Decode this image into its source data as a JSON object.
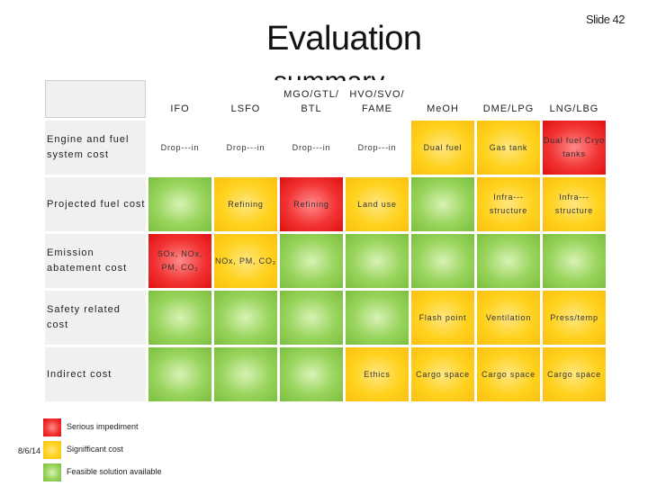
{
  "slide": {
    "number": "Slide 42",
    "title": "Evaluation",
    "subtitle_fragment": "summary",
    "date": "8/6/14"
  },
  "colors": {
    "red": "#f23434",
    "amber": "#ffd21e",
    "green": "#98d45c"
  },
  "columns": [
    "",
    "IFO",
    "LSFO",
    "MGO/GTL/ BTL",
    "HVO/SVO/ FAME",
    "MeOH",
    "DME/LPG",
    "LNG/LBG"
  ],
  "rows": [
    {
      "label": "Engine and fuel system cost",
      "cells": [
        {
          "color": "white",
          "text": "Drop-‐‐in"
        },
        {
          "color": "white",
          "text": "Drop-‐‐in"
        },
        {
          "color": "white",
          "text": "Drop-‐‐in"
        },
        {
          "color": "white",
          "text": "Drop-‐‐in"
        },
        {
          "color": "amber",
          "text": "Dual fuel"
        },
        {
          "color": "amber",
          "text": "Gas tank"
        },
        {
          "color": "red",
          "text": "Dual fuel Cryo tanks"
        }
      ]
    },
    {
      "label": "Projected fuel cost",
      "cells": [
        {
          "color": "green",
          "text": ""
        },
        {
          "color": "amber",
          "text": "Refining"
        },
        {
          "color": "red",
          "text": "Refining"
        },
        {
          "color": "amber",
          "text": "Land use"
        },
        {
          "color": "green",
          "text": ""
        },
        {
          "color": "amber",
          "text": "Infra‐‐‐ structure"
        },
        {
          "color": "amber",
          "text": "Infra‐‐‐ structure"
        }
      ]
    },
    {
      "label": "Emission abatement cost",
      "cells": [
        {
          "color": "red",
          "text": "SOx, NOx, PM, CO₂"
        },
        {
          "color": "amber",
          "text": "NOx, PM, CO₂"
        },
        {
          "color": "green",
          "text": ""
        },
        {
          "color": "green",
          "text": ""
        },
        {
          "color": "green",
          "text": ""
        },
        {
          "color": "green",
          "text": ""
        },
        {
          "color": "green",
          "text": ""
        }
      ]
    },
    {
      "label": "Safety related cost",
      "cells": [
        {
          "color": "green",
          "text": ""
        },
        {
          "color": "green",
          "text": ""
        },
        {
          "color": "green",
          "text": ""
        },
        {
          "color": "green",
          "text": ""
        },
        {
          "color": "amber",
          "text": "Flash point"
        },
        {
          "color": "amber",
          "text": "Ventilation"
        },
        {
          "color": "amber",
          "text": "Press/temp"
        }
      ]
    },
    {
      "label": "Indirect cost",
      "cells": [
        {
          "color": "green",
          "text": ""
        },
        {
          "color": "green",
          "text": ""
        },
        {
          "color": "green",
          "text": ""
        },
        {
          "color": "amber",
          "text": "Ethics"
        },
        {
          "color": "amber",
          "text": "Cargo space"
        },
        {
          "color": "amber",
          "text": "Cargo space"
        },
        {
          "color": "amber",
          "text": "Cargo space"
        }
      ]
    }
  ],
  "legend": [
    {
      "color": "red",
      "label": "Serious impediment"
    },
    {
      "color": "amber",
      "label": "Signifficant cost"
    },
    {
      "color": "green",
      "label": "Feasible solution available"
    }
  ]
}
